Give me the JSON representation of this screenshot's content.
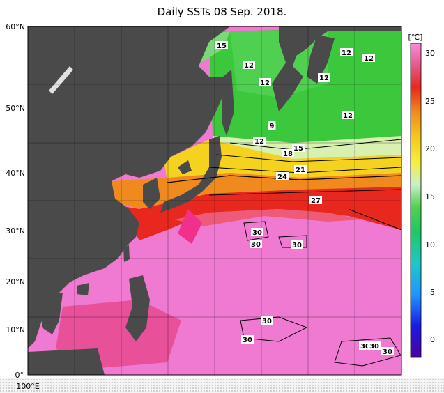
{
  "title": "Daily SSTs 08 Sep. 2018.",
  "lat_labels": [
    "60°N",
    "50°N",
    "40°N",
    "30°N",
    "20°N",
    "10°N",
    "0°"
  ],
  "lon_label": "100°E",
  "colorbar": {
    "unit": "[℃]",
    "ticks": [
      "30",
      "25",
      "20",
      "15",
      "10",
      "5",
      "0"
    ]
  },
  "isotherm_labels": [
    "15",
    "12",
    "12",
    "12",
    "12",
    "12",
    "12",
    "9",
    "12",
    "18",
    "15",
    "21",
    "24",
    "27",
    "30",
    "30",
    "30",
    "30",
    "30",
    "30",
    "30",
    "30"
  ],
  "colors": {
    "land": "#4a4a4a",
    "sst_warm": "#f07ad2",
    "sst_red": "#e8281e",
    "sst_orange": "#f08a1e",
    "sst_yellow": "#f5d21e",
    "sst_green": "#3cc83c",
    "sst_cold": "#1e1ec8"
  }
}
